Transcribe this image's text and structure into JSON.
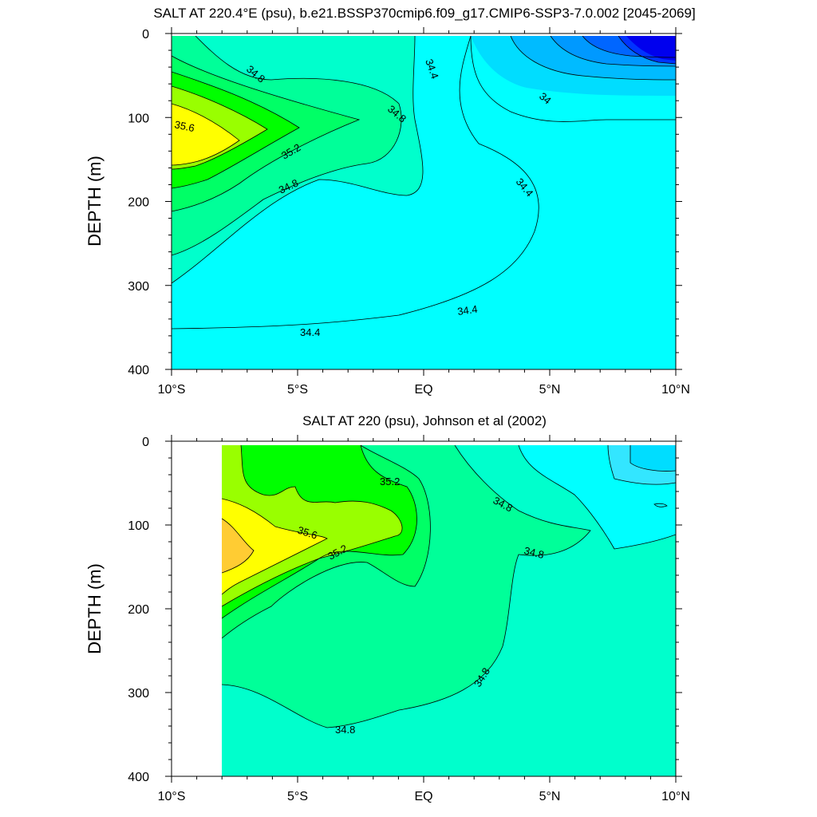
{
  "chart_data": [
    {
      "type": "contour",
      "title": "SALT AT 220.4°E (psu), b.e21.BSSP370cmip6.f09_g17.CMIP6-SSP3-7.0.002 [2045-2069]",
      "xlabel": "",
      "ylabel": "DEPTH (m)",
      "xlim": [
        -10,
        10
      ],
      "ylim": [
        400,
        0
      ],
      "x_ticks": [
        "10°S",
        "5°S",
        "EQ",
        "5°N",
        "10°N"
      ],
      "y_ticks": [
        "0",
        "100",
        "200",
        "300",
        "400"
      ],
      "contour_labels": [
        "34.8",
        "34.8",
        "35.6",
        "35.2",
        "34.8",
        "34.4",
        "34",
        "34.4",
        "34.4",
        "34.4"
      ],
      "grid": false
    },
    {
      "type": "contour",
      "title": "SALT AT 220 (psu), Johnson et al (2002)",
      "xlabel": "",
      "ylabel": "DEPTH (m)",
      "xlim": [
        -10,
        10
      ],
      "ylim": [
        400,
        0
      ],
      "x_ticks": [
        "10°S",
        "5°S",
        "EQ",
        "5°N",
        "10°N"
      ],
      "y_ticks": [
        "0",
        "100",
        "200",
        "300",
        "400"
      ],
      "contour_labels": [
        "35.2",
        "34.8",
        "35.6",
        "35.2",
        "34.8",
        "34.8",
        "34.8"
      ],
      "grid": false
    }
  ]
}
